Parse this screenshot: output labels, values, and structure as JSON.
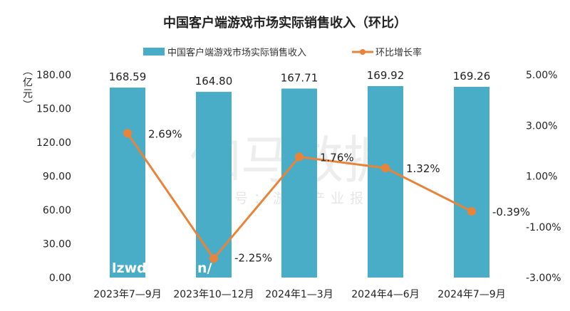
{
  "chart_data": {
    "type": "bar",
    "title": "中国客户端游戏市场实际销售收入（环比）",
    "categories": [
      "2023年7—9月",
      "2023年10—12月",
      "2024年1—3月",
      "2024年4—6月",
      "2024年7—9月"
    ],
    "series": [
      {
        "name": "中国客户端游戏市场实际销售收入",
        "type": "bar",
        "axis": "left",
        "color": "#4AADC8",
        "values": [
          168.59,
          164.8,
          167.71,
          169.92,
          169.26
        ],
        "labels": [
          "168.59",
          "164.80",
          "167.71",
          "169.92",
          "169.26"
        ]
      },
      {
        "name": "环比增长率",
        "type": "line",
        "axis": "right",
        "color": "#E8843A",
        "values": [
          2.69,
          -2.25,
          1.76,
          1.32,
          -0.39
        ],
        "labels": [
          "2.69%",
          "-2.25%",
          "1.76%",
          "1.32%",
          "-0.39%"
        ]
      }
    ],
    "ylabel": "（亿元）",
    "ylim": [
      0,
      180
    ],
    "yticks": [
      "0.00",
      "30.00",
      "60.00",
      "90.00",
      "120.00",
      "150.00",
      "180.00"
    ],
    "y2lim": [
      -3,
      5
    ],
    "y2ticks": [
      "-3.00%",
      "-1.00%",
      "1.00%",
      "3.00%",
      "5.00%"
    ],
    "legend": "top-center",
    "grid": false
  },
  "watermark": {
    "main": "伽马数据",
    "sub": "微信号：游戏产业报告"
  },
  "overlay": {
    "left": "lzwd",
    "right": "n/"
  }
}
